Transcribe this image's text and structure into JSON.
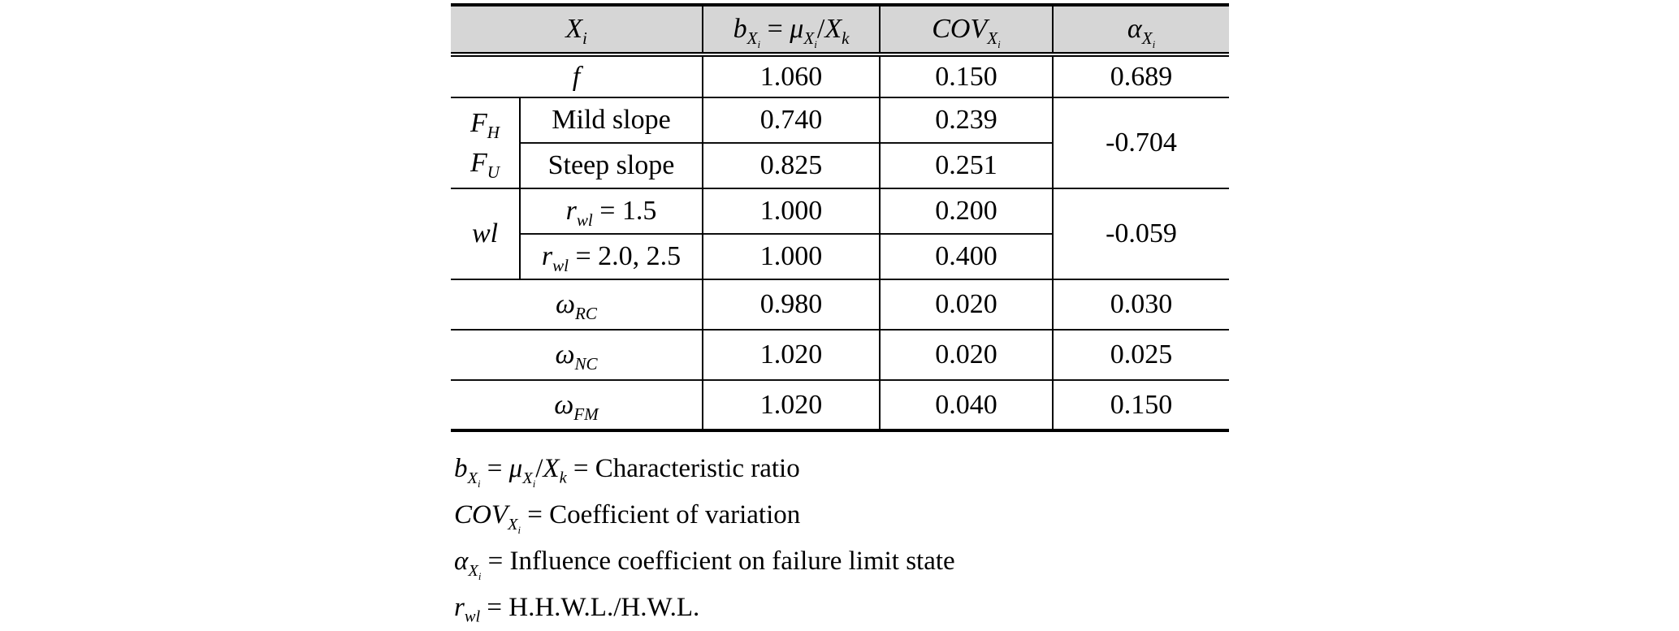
{
  "table": {
    "header": {
      "xi": "*X*_{*i*}",
      "b": "*b*_{*X*_{*i*}} = *μ*_{*X*_{*i*}}/*X*_{*k*}",
      "cov": "*COV*_{*X*_{*i*}}",
      "alpha": "*α*_{*X*_{*i*}}"
    },
    "rows": {
      "f": {
        "label": "*f*",
        "b": "1.060",
        "cov": "0.150",
        "alpha": "0.689"
      },
      "forces": {
        "label_top": "*F*_{*H*}",
        "label_bottom": "*F*_{*U*}",
        "alpha": "-0.704",
        "mild": {
          "label": "Mild slope",
          "b": "0.740",
          "cov": "0.239"
        },
        "steep": {
          "label": "Steep slope",
          "b": "0.825",
          "cov": "0.251"
        }
      },
      "waterlevel": {
        "label": "*wl*",
        "alpha": "-0.059",
        "r15": {
          "label": "*r*_{*wl*} = 1.5",
          "b": "1.000",
          "cov": "0.200"
        },
        "r20": {
          "label": "*r*_{*wl*} = 2.0, 2.5",
          "b": "1.000",
          "cov": "0.400"
        }
      },
      "omega_rc": {
        "label": "*ω*_{*RC*}",
        "b": "0.980",
        "cov": "0.020",
        "alpha": "0.030"
      },
      "omega_nc": {
        "label": "*ω*_{*NC*}",
        "b": "1.020",
        "cov": "0.020",
        "alpha": "0.025"
      },
      "omega_fm": {
        "label": "*ω*_{*FM*}",
        "b": "1.020",
        "cov": "0.040",
        "alpha": "0.150"
      }
    }
  },
  "footnotes": [
    "*b*_{*X*_{*i*}} = *μ*_{*X*_{*i*}}/*X*_{*k*} = Characteristic ratio",
    "*COV*_{*X*_{*i*}} = Coefficient of variation",
    "*α*_{*X*_{*i*}} = Influence coefficient on failure limit state",
    "*r*_{*wl*} = H.H.W.L./H.W.L."
  ],
  "colors": {
    "header_bg": "#d6d6d6",
    "line": "#000000",
    "text": "#000000"
  }
}
